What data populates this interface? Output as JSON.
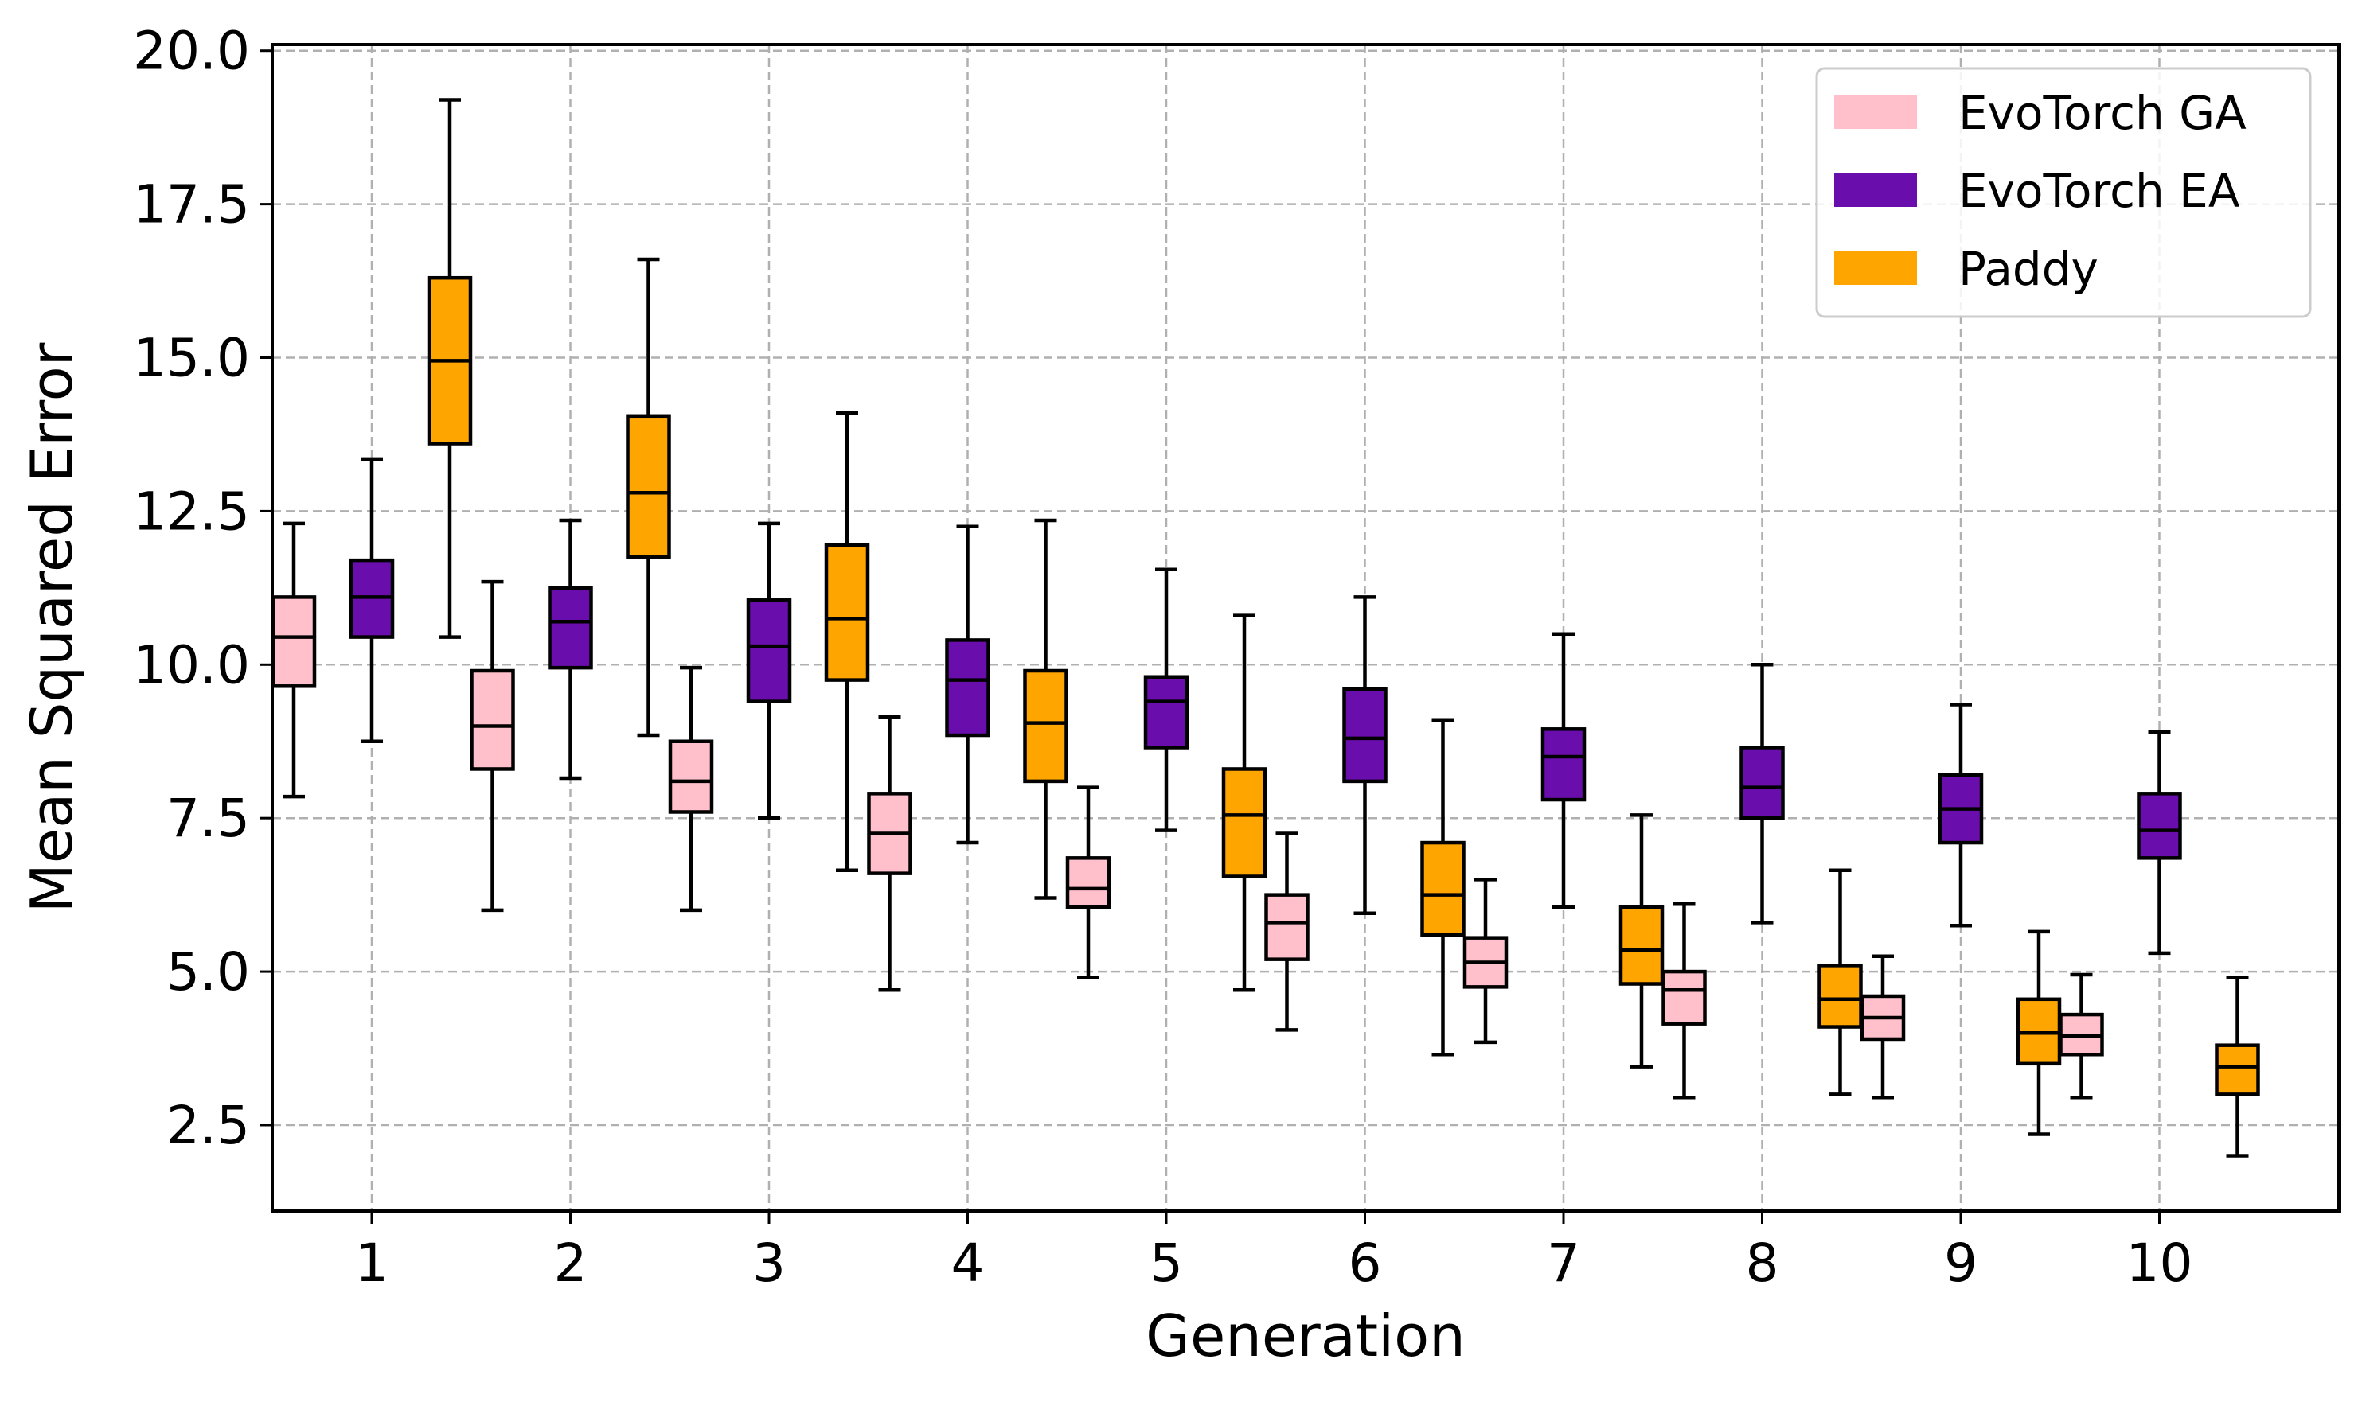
{
  "chart_data": {
    "type": "box",
    "xlabel": "Generation",
    "ylabel": "Mean Squared Error",
    "ylim": [
      1.1,
      20.1
    ],
    "yticks": [
      "2.5",
      "5.0",
      "7.5",
      "10.0",
      "12.5",
      "15.0",
      "17.5",
      "20.0"
    ],
    "categories": [
      "1",
      "2",
      "3",
      "4",
      "5",
      "6",
      "7",
      "8",
      "9",
      "10"
    ],
    "grid": true,
    "legend_position": "top-right",
    "series": [
      {
        "name": "EvoTorch GA",
        "color": "#ffc0cb",
        "boxes": [
          {
            "whislo": 7.85,
            "q1": 9.65,
            "med": 10.45,
            "q3": 11.1,
            "whishi": 12.3
          },
          {
            "whislo": 6.0,
            "q1": 8.3,
            "med": 9.0,
            "q3": 9.9,
            "whishi": 11.35
          },
          {
            "whislo": 6.0,
            "q1": 7.6,
            "med": 8.1,
            "q3": 8.75,
            "whishi": 9.95
          },
          {
            "whislo": 4.7,
            "q1": 6.6,
            "med": 7.25,
            "q3": 7.9,
            "whishi": 9.15
          },
          {
            "whislo": 4.9,
            "q1": 6.05,
            "med": 6.35,
            "q3": 6.85,
            "whishi": 8.0
          },
          {
            "whislo": 4.05,
            "q1": 5.2,
            "med": 5.8,
            "q3": 6.25,
            "whishi": 7.25
          },
          {
            "whislo": 3.85,
            "q1": 4.75,
            "med": 5.15,
            "q3": 5.55,
            "whishi": 6.5
          },
          {
            "whislo": 2.95,
            "q1": 4.15,
            "med": 4.7,
            "q3": 5.0,
            "whishi": 6.1
          },
          {
            "whislo": 2.95,
            "q1": 3.9,
            "med": 4.25,
            "q3": 4.6,
            "whishi": 5.25
          },
          {
            "whislo": 2.95,
            "q1": 3.65,
            "med": 3.95,
            "q3": 4.3,
            "whishi": 4.95
          }
        ]
      },
      {
        "name": "EvoTorch EA",
        "color": "#6a0dad",
        "boxes": [
          {
            "whislo": 8.75,
            "q1": 10.45,
            "med": 11.1,
            "q3": 11.7,
            "whishi": 13.35
          },
          {
            "whislo": 8.15,
            "q1": 9.95,
            "med": 10.7,
            "q3": 11.25,
            "whishi": 12.35
          },
          {
            "whislo": 7.5,
            "q1": 9.4,
            "med": 10.3,
            "q3": 11.05,
            "whishi": 12.3
          },
          {
            "whislo": 7.1,
            "q1": 8.85,
            "med": 9.75,
            "q3": 10.4,
            "whishi": 12.25
          },
          {
            "whislo": 7.3,
            "q1": 8.65,
            "med": 9.4,
            "q3": 9.8,
            "whishi": 11.55
          },
          {
            "whislo": 5.95,
            "q1": 8.1,
            "med": 8.8,
            "q3": 9.6,
            "whishi": 11.1
          },
          {
            "whislo": 6.05,
            "q1": 7.8,
            "med": 8.5,
            "q3": 8.95,
            "whishi": 10.5
          },
          {
            "whislo": 5.8,
            "q1": 7.5,
            "med": 8.0,
            "q3": 8.65,
            "whishi": 10.0
          },
          {
            "whislo": 5.75,
            "q1": 7.1,
            "med": 7.65,
            "q3": 8.2,
            "whishi": 9.35
          },
          {
            "whislo": 5.3,
            "q1": 6.85,
            "med": 7.3,
            "q3": 7.9,
            "whishi": 8.9
          }
        ]
      },
      {
        "name": "Paddy",
        "color": "#ffa500",
        "boxes": [
          {
            "whislo": 10.45,
            "q1": 13.6,
            "med": 14.95,
            "q3": 16.3,
            "whishi": 19.2
          },
          {
            "whislo": 8.85,
            "q1": 11.75,
            "med": 12.8,
            "q3": 14.05,
            "whishi": 16.6
          },
          {
            "whislo": 6.65,
            "q1": 9.75,
            "med": 10.75,
            "q3": 11.95,
            "whishi": 14.1
          },
          {
            "whislo": 6.2,
            "q1": 8.1,
            "med": 9.05,
            "q3": 9.9,
            "whishi": 12.35
          },
          {
            "whislo": 4.7,
            "q1": 6.55,
            "med": 7.55,
            "q3": 8.3,
            "whishi": 10.8
          },
          {
            "whislo": 3.65,
            "q1": 5.6,
            "med": 6.25,
            "q3": 7.1,
            "whishi": 9.1
          },
          {
            "whislo": 3.45,
            "q1": 4.8,
            "med": 5.35,
            "q3": 6.05,
            "whishi": 7.55
          },
          {
            "whislo": 3.0,
            "q1": 4.1,
            "med": 4.55,
            "q3": 5.1,
            "whishi": 6.65
          },
          {
            "whislo": 2.35,
            "q1": 3.5,
            "med": 4.0,
            "q3": 4.55,
            "whishi": 5.65
          },
          {
            "whislo": 2.0,
            "q1": 3.0,
            "med": 3.45,
            "q3": 3.8,
            "whishi": 4.9
          }
        ]
      }
    ]
  }
}
